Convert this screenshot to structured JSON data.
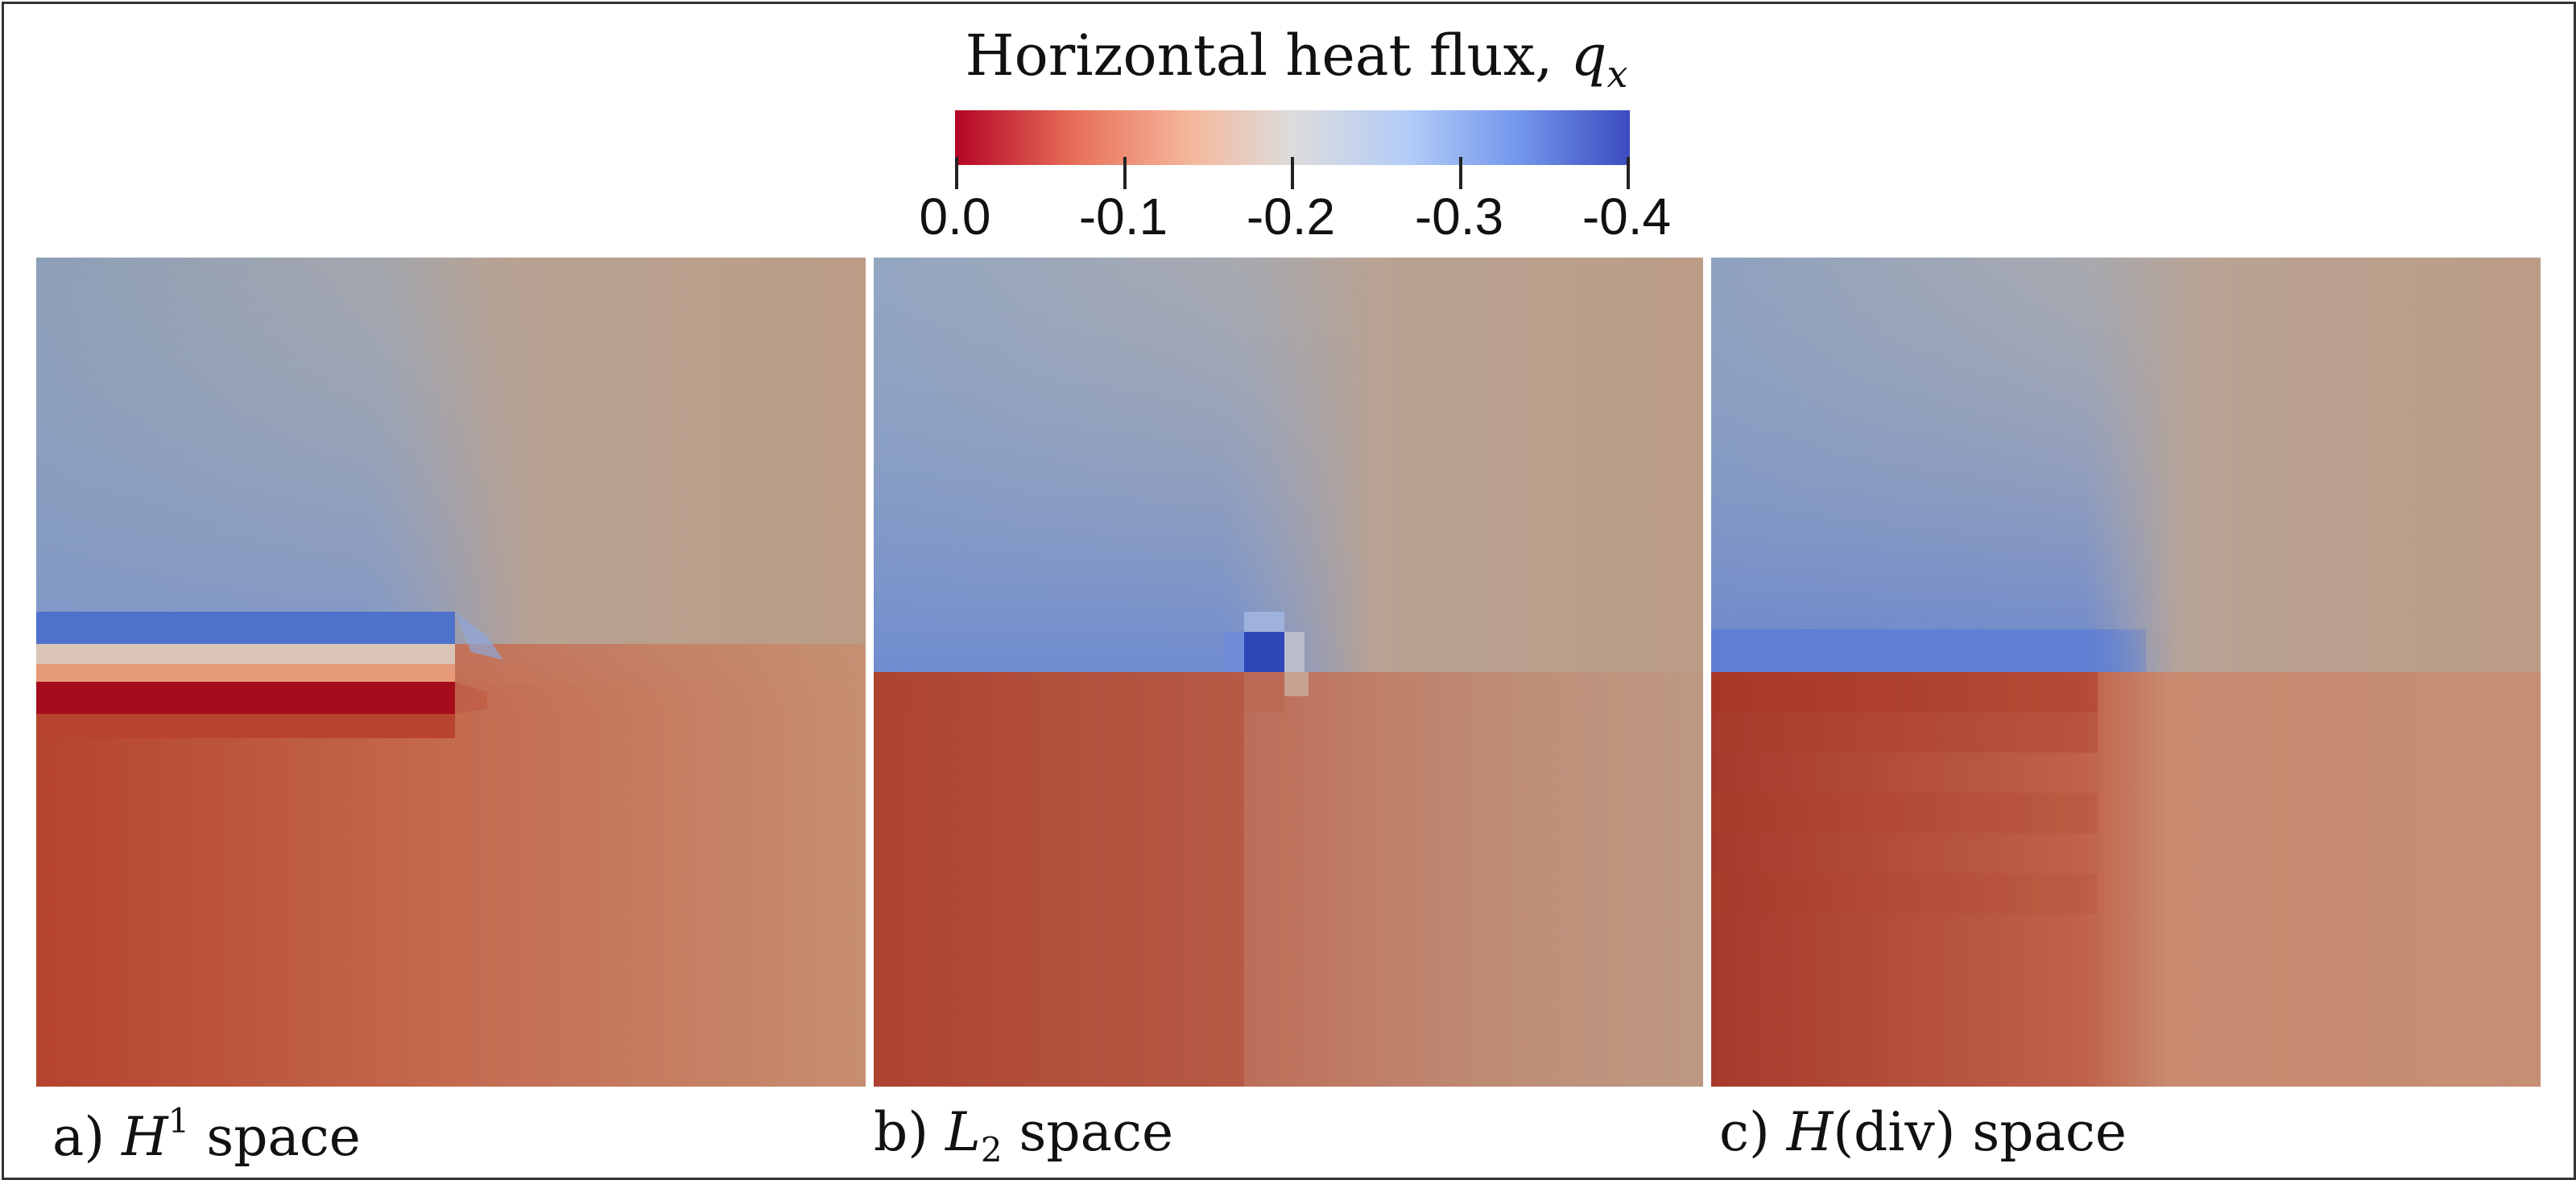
{
  "colorbar": {
    "title_text": "Horizontal heat flux, ",
    "title_symbol": "q",
    "title_subscript": "x",
    "tick_labels": [
      "0.0",
      "-0.1",
      "-0.2",
      "-0.3",
      "-0.4"
    ],
    "colors": [
      "#b40426",
      "#e8705a",
      "#f5b89c",
      "#dddcdc",
      "#b3ccf7",
      "#7598ec",
      "#3b4cc0"
    ]
  },
  "panels": [
    {
      "prefix": "a) ",
      "symbol": "H",
      "superscript": "1",
      "subscript": "",
      "paren": "",
      "suffix": " space"
    },
    {
      "prefix": "b) ",
      "symbol": "L",
      "superscript": "",
      "subscript": "2",
      "paren": "",
      "suffix": " space"
    },
    {
      "prefix": "c) ",
      "symbol": "H",
      "superscript": "",
      "subscript": "",
      "paren": "(div)",
      "suffix": " space"
    }
  ]
}
